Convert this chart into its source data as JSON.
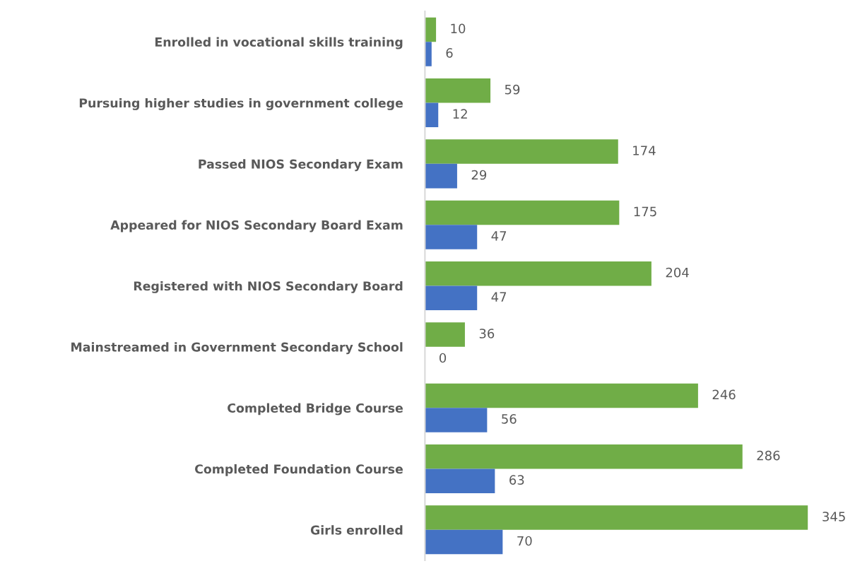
{
  "chart_data": {
    "type": "bar",
    "orientation": "horizontal",
    "categories": [
      "Enrolled in vocational skills training",
      "Pursuing higher studies in government college",
      "Passed NIOS Secondary Exam",
      "Appeared for NIOS Secondary Board Exam",
      "Registered with NIOS Secondary Board",
      "Mainstreamed in Government Secondary School",
      "Completed Bridge Course",
      "Completed Foundation Course",
      "Girls enrolled"
    ],
    "series": [
      {
        "color": "#70ad47",
        "values": [
          10,
          59,
          174,
          175,
          204,
          36,
          246,
          286,
          345
        ]
      },
      {
        "color": "#4472c4",
        "values": [
          6,
          12,
          29,
          47,
          47,
          0,
          56,
          63,
          70
        ]
      }
    ],
    "data_labels": true,
    "tick_labels": "y",
    "grid": false,
    "legend": false
  }
}
